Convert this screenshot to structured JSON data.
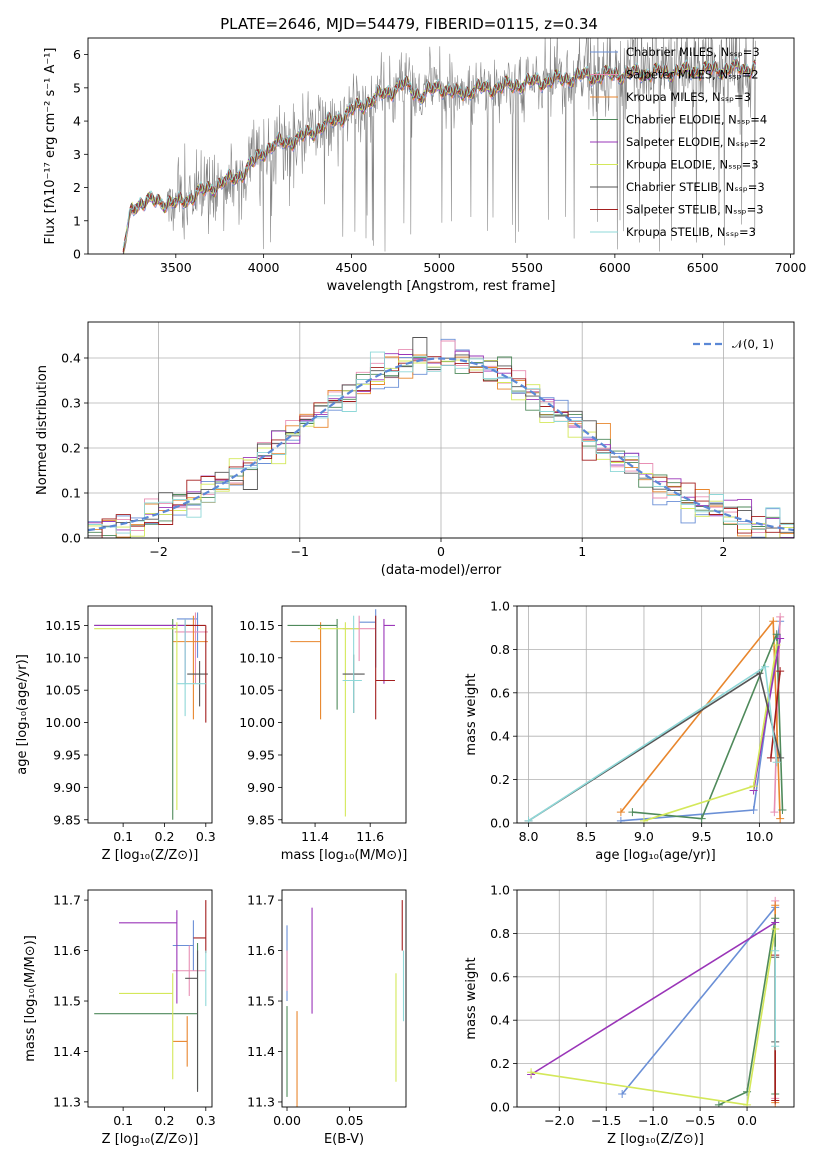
{
  "figure": {
    "title": "PLATE=2646, MJD=54479, FIBERID=0115, z=0.34"
  },
  "legend_labels": [
    "Chabrier MILES, Nₛₛₚ=3",
    "Salpeter MILES, Nₛₛₚ=2",
    "Kroupa MILES, Nₛₛₚ=3",
    "Chabrier ELODIE, Nₛₛₚ=4",
    "Salpeter ELODIE, Nₛₛₚ=2",
    "Kroupa ELODIE, Nₛₛₚ=3",
    "Chabrier STELIB, Nₛₛₚ=3",
    "Salpeter STELIB, Nₛₛₚ=3",
    "Kroupa STELIB, Nₛₛₚ=3"
  ],
  "model_colors": [
    "#6a8fd6",
    "#e88fb4",
    "#e8862d",
    "#4f8a5b",
    "#9a35b8",
    "#d4e85a",
    "#555555",
    "#a31e1e",
    "#8fd8d8"
  ],
  "chart_data": [
    {
      "id": "spectrum",
      "type": "line",
      "title": "PLATE=2646, MJD=54479, FIBERID=0115, z=0.34",
      "xlabel": "wavelength [Angstrom, rest frame]",
      "ylabel": "Flux [fλ10⁻¹⁷ erg cm⁻² s⁻¹ A⁻¹]",
      "xlim": [
        3000,
        7020
      ],
      "ylim": [
        0,
        6.5
      ],
      "xticks": [
        3500,
        4000,
        4500,
        5000,
        5500,
        6000,
        6500,
        7000
      ],
      "yticks": [
        0,
        1,
        2,
        3,
        4,
        5,
        6
      ],
      "grid": false,
      "legend_position": "top-right",
      "continuum_anchors": {
        "x": [
          3200,
          3250,
          3300,
          3400,
          3500,
          3600,
          3700,
          3800,
          3900,
          4000,
          4100,
          4200,
          4300,
          4400,
          4500,
          4600,
          4700,
          4800,
          4900,
          5000,
          5100,
          5200,
          5300,
          5400,
          5500,
          5600,
          5700,
          5800,
          5900,
          6000,
          6200,
          6400,
          6600,
          6800
        ],
        "y": [
          0,
          1.4,
          1.55,
          1.6,
          1.5,
          1.75,
          2.0,
          2.2,
          2.5,
          3.1,
          3.35,
          3.45,
          3.75,
          4.0,
          4.3,
          4.6,
          4.85,
          5.1,
          4.75,
          5.05,
          4.8,
          4.95,
          5.0,
          5.05,
          5.15,
          5.2,
          5.25,
          5.35,
          5.35,
          5.4,
          5.45,
          5.5,
          5.55,
          5.6
        ]
      }
    },
    {
      "id": "residuals",
      "type": "histogram",
      "xlabel": "(data-model)/error",
      "ylabel": "Normed distribution",
      "xlim": [
        -2.5,
        2.5
      ],
      "ylim": [
        0,
        0.48
      ],
      "xticks": [
        -2,
        -1,
        0,
        1,
        2
      ],
      "yticks": [
        0.0,
        0.1,
        0.2,
        0.3,
        0.4
      ],
      "grid": true,
      "legend_position": "top-right",
      "reference_curve": "𝒩(0, 1)",
      "bin_width": 0.1
    },
    {
      "id": "z-age",
      "type": "errorbar",
      "xlabel": "Z [log₁₀(Z/Z⊙)]",
      "ylabel": "age  [log₁₀(age/yr)]",
      "xlim": [
        0.015,
        0.315
      ],
      "ylim": [
        9.845,
        10.18
      ],
      "xticks": [
        0.1,
        0.2,
        0.3
      ],
      "yticks": [
        9.85,
        9.9,
        9.95,
        10.0,
        10.05,
        10.1,
        10.15
      ],
      "points": [
        {
          "x": 0.28,
          "y": 10.16,
          "xerr": [
            0.05,
            0.0
          ],
          "yerr": [
            0.06,
            0.01
          ]
        },
        {
          "x": 0.275,
          "y": 10.14,
          "xerr": [
            0.05,
            0.03
          ],
          "yerr": [
            0.08,
            0.03
          ]
        },
        {
          "x": 0.27,
          "y": 10.125,
          "xerr": [
            0.05,
            0.035
          ],
          "yerr": [
            0.12,
            0.04
          ]
        },
        {
          "x": 0.22,
          "y": 10.15,
          "xerr": [
            0.19,
            0.05
          ],
          "yerr": [
            0.3,
            0.01
          ]
        },
        {
          "x": 0.25,
          "y": 10.15,
          "xerr": [
            0.22,
            0.0
          ],
          "yerr": [
            0.09,
            0.01
          ]
        },
        {
          "x": 0.23,
          "y": 10.145,
          "xerr": [
            0.2,
            0.0
          ],
          "yerr": [
            0.28,
            0.01
          ]
        },
        {
          "x": 0.285,
          "y": 10.075,
          "xerr": [
            0.03,
            0.02
          ],
          "yerr": [
            0.05,
            0.02
          ]
        },
        {
          "x": 0.3,
          "y": 10.15,
          "xerr": [
            0.05,
            0.0
          ],
          "yerr": [
            0.15,
            0.0
          ]
        },
        {
          "x": 0.25,
          "y": 10.06,
          "xerr": [
            0.02,
            0.05
          ],
          "yerr": [
            0.05,
            0.1
          ]
        }
      ]
    },
    {
      "id": "mass-age",
      "type": "errorbar",
      "xlabel": "mass [log₁₀(M/M⊙)]",
      "ylabel": "",
      "xlim": [
        11.28,
        11.73
      ],
      "ylim": [
        9.845,
        10.18
      ],
      "xticks": [
        11.4,
        11.6
      ],
      "yticks": [
        9.85,
        9.9,
        9.95,
        10.0,
        10.05,
        10.1,
        10.15
      ],
      "points": [
        {
          "x": 11.62,
          "y": 10.155,
          "xerr": [
            0.06,
            0.0
          ],
          "yerr": [
            0.07,
            0.02
          ]
        },
        {
          "x": 11.56,
          "y": 10.145,
          "xerr": [
            0.06,
            0.06
          ],
          "yerr": [
            0.05,
            0.02
          ]
        },
        {
          "x": 11.42,
          "y": 10.125,
          "xerr": [
            0.11,
            0.0
          ],
          "yerr": [
            0.12,
            0.03
          ]
        },
        {
          "x": 11.48,
          "y": 10.15,
          "xerr": [
            0.18,
            0.0
          ],
          "yerr": [
            0.13,
            0.01
          ]
        },
        {
          "x": 11.65,
          "y": 10.15,
          "xerr": [
            0.0,
            0.04
          ],
          "yerr": [
            0.09,
            0.01
          ]
        },
        {
          "x": 11.51,
          "y": 10.145,
          "xerr": [
            0.1,
            0.05
          ],
          "yerr": [
            0.29,
            0.01
          ]
        },
        {
          "x": 11.54,
          "y": 10.075,
          "xerr": [
            0.04,
            0.04
          ],
          "yerr": [
            0.06,
            0.03
          ]
        },
        {
          "x": 11.62,
          "y": 10.065,
          "xerr": [
            0.0,
            0.07
          ],
          "yerr": [
            0.06,
            0.1
          ]
        },
        {
          "x": 11.54,
          "y": 10.065,
          "xerr": [
            0.04,
            0.03
          ],
          "yerr": [
            0.05,
            0.1
          ]
        }
      ]
    },
    {
      "id": "age-weight",
      "type": "line",
      "xlabel": "age  [log₁₀(age/yr)]",
      "ylabel": "mass weight",
      "xlim": [
        7.9,
        10.3
      ],
      "ylim": [
        0,
        1
      ],
      "xticks": [
        8.0,
        8.5,
        9.0,
        9.5,
        10.0
      ],
      "yticks": [
        0.0,
        0.2,
        0.4,
        0.6,
        0.8,
        1.0
      ],
      "grid": true,
      "series": [
        {
          "x": [
            8.8,
            9.95,
            10.18
          ],
          "y": [
            0.01,
            0.06,
            0.93
          ]
        },
        {
          "x": [
            10.13,
            10.18
          ],
          "y": [
            0.05,
            0.95
          ]
        },
        {
          "x": [
            8.8,
            10.12,
            10.18
          ],
          "y": [
            0.05,
            0.93,
            0.02
          ]
        },
        {
          "x": [
            8.9,
            9.5,
            10.15,
            10.2
          ],
          "y": [
            0.05,
            0.02,
            0.87,
            0.06
          ]
        },
        {
          "x": [
            9.95,
            10.18
          ],
          "y": [
            0.15,
            0.85
          ]
        },
        {
          "x": [
            9.0,
            9.95,
            10.15
          ],
          "y": [
            0.01,
            0.17,
            0.82
          ]
        },
        {
          "x": [
            8.0,
            10.0,
            10.18
          ],
          "y": [
            0.01,
            0.69,
            0.3
          ]
        },
        {
          "x": [
            10.1,
            10.18
          ],
          "y": [
            0.3,
            0.7
          ]
        },
        {
          "x": [
            8.0,
            10.05,
            10.15
          ],
          "y": [
            0.01,
            0.72,
            0.28
          ]
        }
      ]
    },
    {
      "id": "z-mass",
      "type": "errorbar",
      "xlabel": "Z [log₁₀(Z/Z⊙)]",
      "ylabel": "mass [log₁₀(M/M⊙)]",
      "xlim": [
        0.015,
        0.315
      ],
      "ylim": [
        11.29,
        11.72
      ],
      "xticks": [
        0.1,
        0.2,
        0.3
      ],
      "yticks": [
        11.3,
        11.4,
        11.5,
        11.6,
        11.7
      ],
      "points": [
        {
          "x": 0.27,
          "y": 11.61,
          "xerr": [
            0.05,
            0.0
          ],
          "yerr": [
            0.05,
            0.05
          ]
        },
        {
          "x": 0.26,
          "y": 11.56,
          "xerr": [
            0.04,
            0.04
          ],
          "yerr": [
            0.05,
            0.05
          ]
        },
        {
          "x": 0.255,
          "y": 11.42,
          "xerr": [
            0.035,
            0.0
          ],
          "yerr": [
            0.05,
            0.05
          ]
        },
        {
          "x": 0.28,
          "y": 11.475,
          "xerr": [
            0.25,
            0.0
          ],
          "yerr": [
            0.15,
            0.14
          ]
        },
        {
          "x": 0.23,
          "y": 11.655,
          "xerr": [
            0.14,
            0.0
          ],
          "yerr": [
            0.16,
            0.025
          ]
        },
        {
          "x": 0.22,
          "y": 11.515,
          "xerr": [
            0.13,
            0.0
          ],
          "yerr": [
            0.17,
            0.04
          ]
        },
        {
          "x": 0.28,
          "y": 11.545,
          "xerr": [
            0.03,
            0.0
          ],
          "yerr": [
            0.225,
            0.055
          ]
        },
        {
          "x": 0.3,
          "y": 11.625,
          "xerr": [
            0.03,
            0.0
          ],
          "yerr": [
            0.03,
            0.075
          ]
        },
        {
          "x": 0.3,
          "y": 11.55,
          "xerr": [
            0.0,
            0.0
          ],
          "yerr": [
            0.06,
            0.05
          ]
        }
      ]
    },
    {
      "id": "ebv-mass",
      "type": "errorbar",
      "xlabel": "E(B-V)",
      "ylabel": "",
      "xlim": [
        -0.004,
        0.095
      ],
      "ylim": [
        11.29,
        11.72
      ],
      "xticks": [
        0.0,
        0.05
      ],
      "yticks": [
        11.3,
        11.4,
        11.5,
        11.6,
        11.7
      ],
      "points": [
        {
          "x": 0.0,
          "y": 11.55,
          "xerr": [
            0,
            0
          ],
          "yerr": [
            0.05,
            0.1
          ]
        },
        {
          "x": 0.0,
          "y": 11.56,
          "xerr": [
            0,
            0
          ],
          "yerr": [
            0.04,
            0.04
          ]
        },
        {
          "x": 0.008,
          "y": 11.38,
          "xerr": [
            0,
            0
          ],
          "yerr": [
            0.09,
            0.1
          ]
        },
        {
          "x": 0.0,
          "y": 11.4,
          "xerr": [
            0,
            0
          ],
          "yerr": [
            0.09,
            0.09
          ]
        },
        {
          "x": 0.02,
          "y": 11.58,
          "xerr": [
            0,
            0
          ],
          "yerr": [
            0.105,
            0.105
          ]
        },
        {
          "x": 0.087,
          "y": 11.45,
          "xerr": [
            0,
            0
          ],
          "yerr": [
            0.11,
            0.105
          ]
        },
        {
          "x": 0.0,
          "y": 11.3,
          "xerr": [
            0,
            0
          ],
          "yerr": [
            0.0,
            0.0
          ]
        },
        {
          "x": 0.092,
          "y": 11.6,
          "xerr": [
            0,
            0
          ],
          "yerr": [
            0.0,
            0.1
          ]
        },
        {
          "x": 0.093,
          "y": 11.53,
          "xerr": [
            0,
            0
          ],
          "yerr": [
            0.07,
            0.07
          ]
        }
      ]
    },
    {
      "id": "z-weight",
      "type": "line",
      "xlabel": "Z [log₁₀(Z/Z⊙)]",
      "ylabel": "mass weight",
      "xlim": [
        -2.45,
        0.5
      ],
      "ylim": [
        0,
        1
      ],
      "xticks": [
        -2.0,
        -1.5,
        -1.0,
        -0.5,
        0.0
      ],
      "yticks": [
        0.0,
        0.2,
        0.4,
        0.6,
        0.8,
        1.0
      ],
      "grid": true,
      "series": [
        {
          "x": [
            -1.33,
            0.3
          ],
          "y": [
            0.06,
            0.92
          ]
        },
        {
          "x": [
            0.3,
            0.3
          ],
          "y": [
            0.04,
            0.95
          ]
        },
        {
          "x": [
            0.3,
            0.3
          ],
          "y": [
            0.02,
            0.93
          ]
        },
        {
          "x": [
            -0.3,
            0.0,
            0.3,
            0.3
          ],
          "y": [
            0.01,
            0.07,
            0.87,
            0.06
          ]
        },
        {
          "x": [
            -2.3,
            0.3
          ],
          "y": [
            0.15,
            0.85
          ]
        },
        {
          "x": [
            -2.3,
            0.0,
            0.3
          ],
          "y": [
            0.16,
            0.01,
            0.82
          ]
        },
        {
          "x": [
            0.3,
            0.3
          ],
          "y": [
            0.3,
            0.69
          ]
        },
        {
          "x": [
            0.3,
            0.3
          ],
          "y": [
            0.03,
            0.7
          ]
        },
        {
          "x": [
            0.3,
            0.3
          ],
          "y": [
            0.28,
            0.72
          ]
        }
      ]
    }
  ]
}
